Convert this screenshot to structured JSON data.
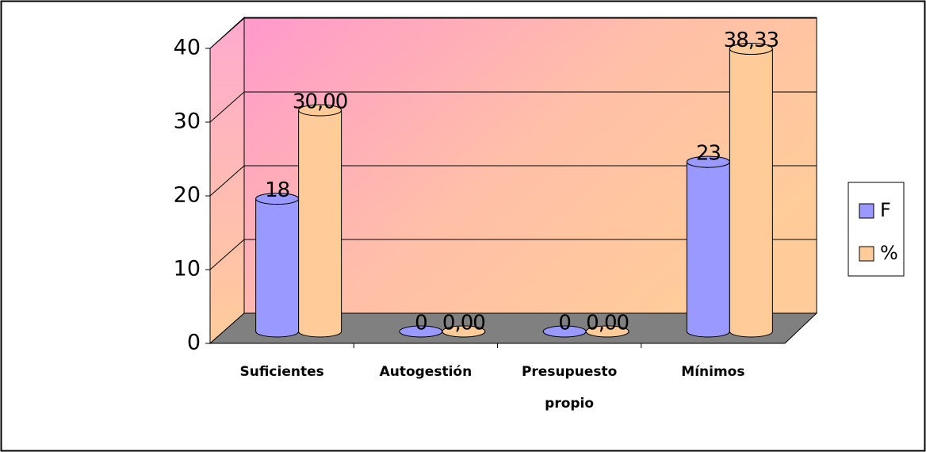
{
  "chart_data": {
    "type": "bar3d",
    "categories": [
      "Suficientes",
      "Autogestión",
      "Presupuesto propio",
      "Mínimos"
    ],
    "series": [
      {
        "name": "F",
        "color": "#9999ff",
        "values": [
          18,
          0,
          0,
          23
        ]
      },
      {
        "name": "%",
        "color": "#ffcc99",
        "values": [
          30,
          0,
          0,
          38.33
        ],
        "value_labels": [
          "30,00",
          "0,00",
          "0,00",
          "38,33"
        ]
      }
    ],
    "ylim": [
      0,
      40
    ],
    "yticks": [
      0,
      10,
      20,
      30,
      40
    ],
    "grid": true,
    "legend": "right"
  }
}
